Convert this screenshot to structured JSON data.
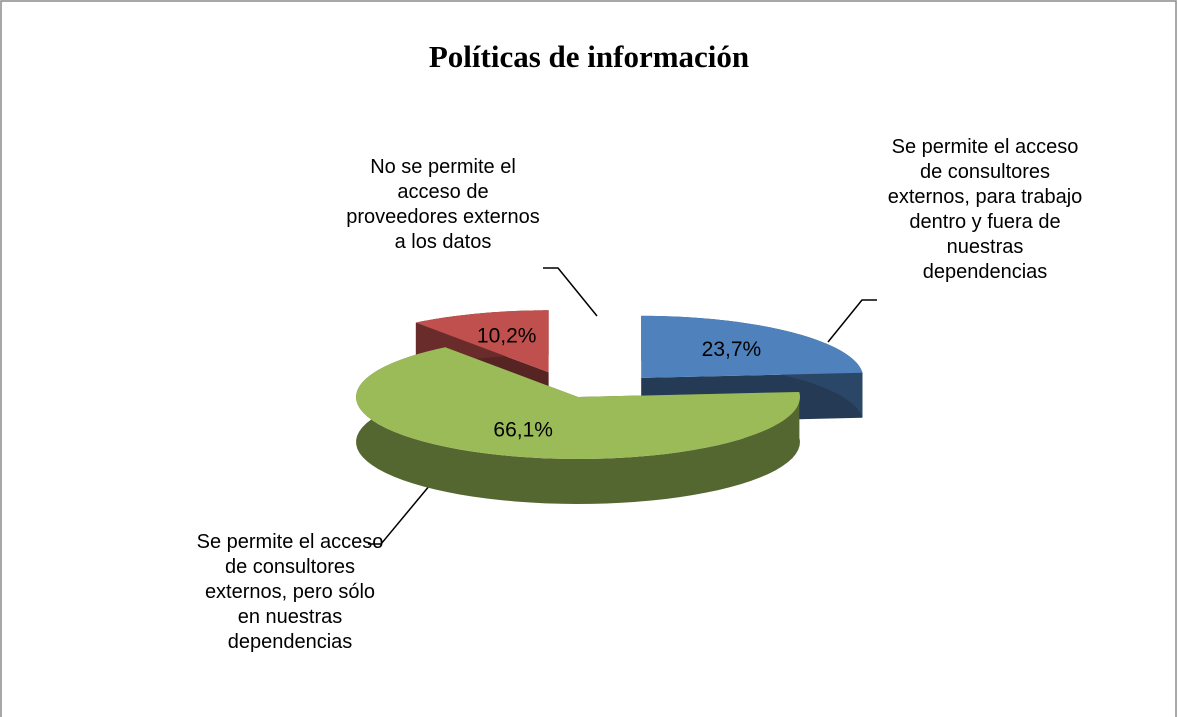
{
  "chart_data": {
    "type": "pie3d",
    "title": "Políticas de información",
    "categories": [
      "Se permite el acceso de consultores externos, para trabajo dentro y fuera de nuestras dependencias",
      "Se permite el acceso de consultores externos, pero sólo en nuestras dependencias",
      "No se permite el acceso de proveedores externos a los datos"
    ],
    "values": [
      23.7,
      66.1,
      10.2
    ],
    "value_labels": [
      "23,7%",
      "66,1%",
      "10,2%"
    ],
    "colors": [
      "#4f81bd",
      "#9bbb59",
      "#c0504d"
    ],
    "exploded": [
      true,
      false,
      true
    ]
  }
}
